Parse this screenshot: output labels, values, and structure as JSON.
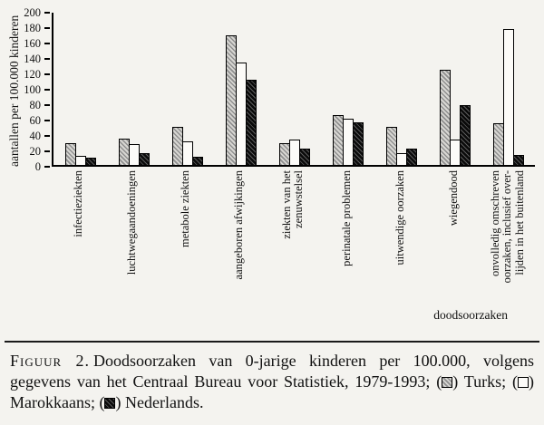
{
  "chart_data": {
    "type": "bar",
    "title": "",
    "xlabel": "doodsoorzaken",
    "ylabel": "aantallen per 100.000 kinderen",
    "ylim": [
      0,
      200
    ],
    "ytick_step": 20,
    "grid": false,
    "legend_position": "in caption below chart",
    "categories": [
      "infectieziekten",
      "luchtwegaandoeningen",
      "metabole ziekten",
      "aangeboren afwijkingen",
      "ziekten van het\nzenuwstelsel",
      "perinatale problemen",
      "uitwendige oorzaken",
      "wiegendood",
      "onvolledig omschreven\noorzaken, inclusief over-\nlijden in het buitenland"
    ],
    "series": [
      {
        "name": "Turks",
        "pattern": "hatched-gray",
        "values": [
          28,
          35,
          50,
          170,
          28,
          66,
          50,
          125,
          55
        ]
      },
      {
        "name": "Marokkaans",
        "pattern": "open-white",
        "values": [
          12,
          27,
          31,
          135,
          33,
          61,
          15,
          33,
          178
        ]
      },
      {
        "name": "Nederlands",
        "pattern": "hatched-dark",
        "values": [
          10,
          16,
          11,
          112,
          21,
          56,
          21,
          78,
          13
        ]
      }
    ],
    "colors": {
      "axis": "#000000",
      "turks_fill": "#c8c8c8",
      "marokkaans_fill": "#ffffff",
      "nederlands_fill": "#1a1a1a"
    }
  },
  "caption": {
    "figure_label": "Figuur 2.",
    "body": "Doodsoorzaken van 0-jarige kinderen per 100.000, volgens gegevens van het Centraal Bureau voor Statistiek, 1979-1993;",
    "legend": [
      {
        "symbol": "hatched-gray-square",
        "label": "Turks;"
      },
      {
        "symbol": "open-white-square",
        "label": "Marokkaans;"
      },
      {
        "symbol": "hatched-dark-square",
        "label": "Nederlands."
      }
    ]
  }
}
